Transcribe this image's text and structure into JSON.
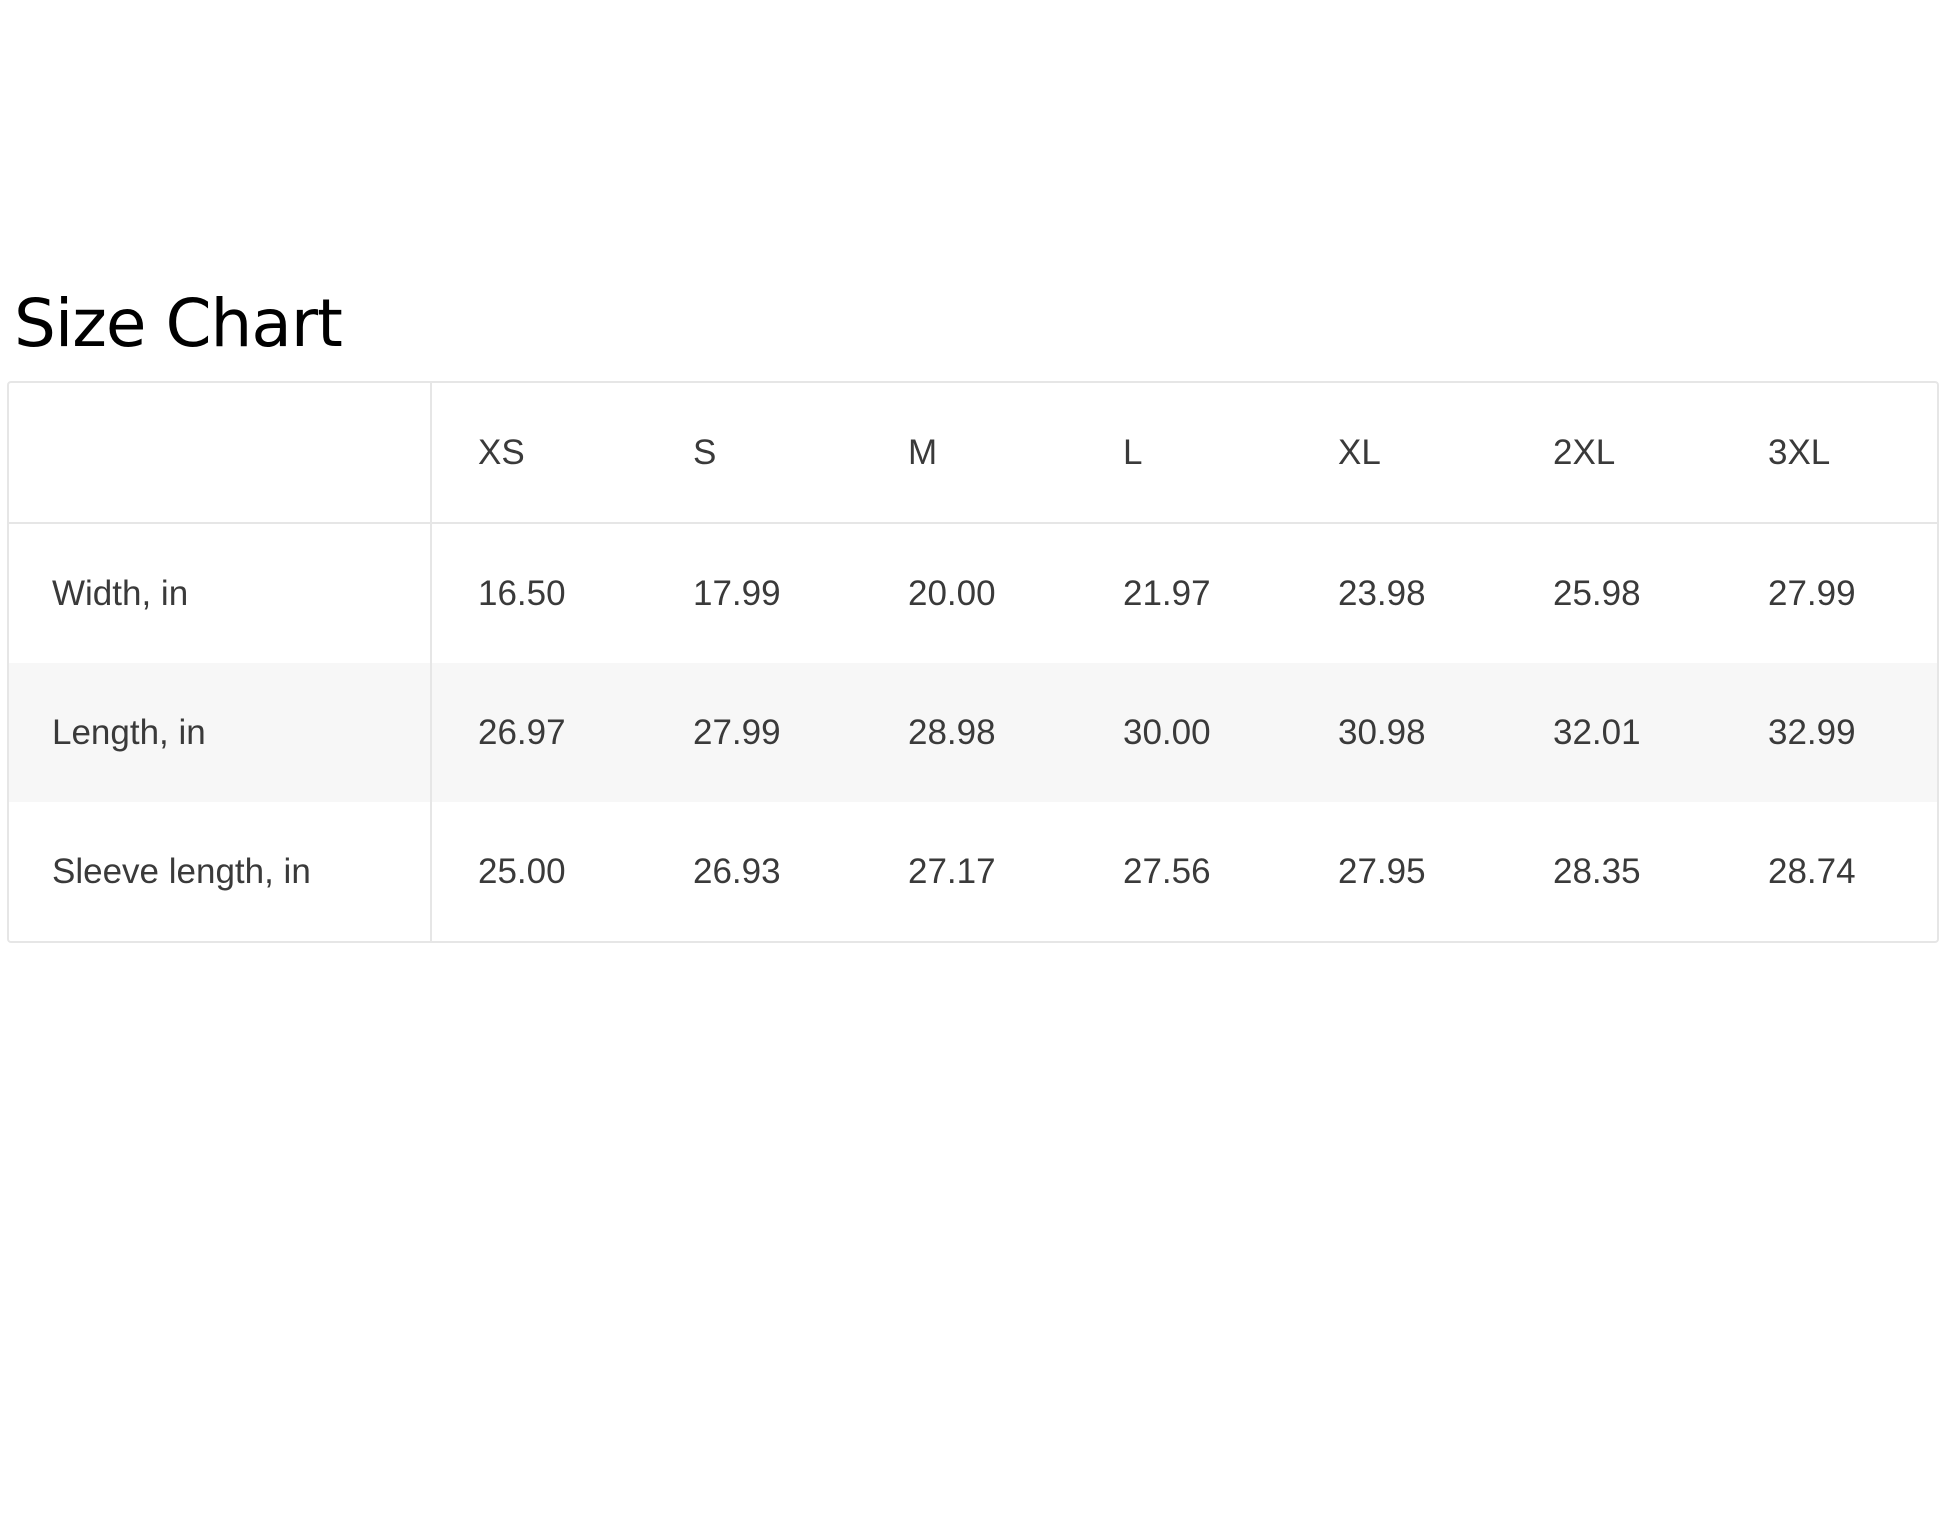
{
  "title": "Size Chart",
  "table": {
    "headers": [
      "",
      "XS",
      "S",
      "M",
      "L",
      "XL",
      "2XL",
      "3XL"
    ],
    "rows": [
      {
        "label": "Width, in",
        "values": [
          "16.50",
          "17.99",
          "20.00",
          "21.97",
          "23.98",
          "25.98",
          "27.99"
        ]
      },
      {
        "label": "Length, in",
        "values": [
          "26.97",
          "27.99",
          "28.98",
          "30.00",
          "30.98",
          "32.01",
          "32.99"
        ]
      },
      {
        "label": "Sleeve length, in",
        "values": [
          "25.00",
          "26.93",
          "27.17",
          "27.56",
          "27.95",
          "28.35",
          "28.74"
        ]
      }
    ]
  },
  "colors": {
    "border": "#e6e6e6",
    "alt_row": "#f7f7f7",
    "text": "#3a3a3a"
  }
}
